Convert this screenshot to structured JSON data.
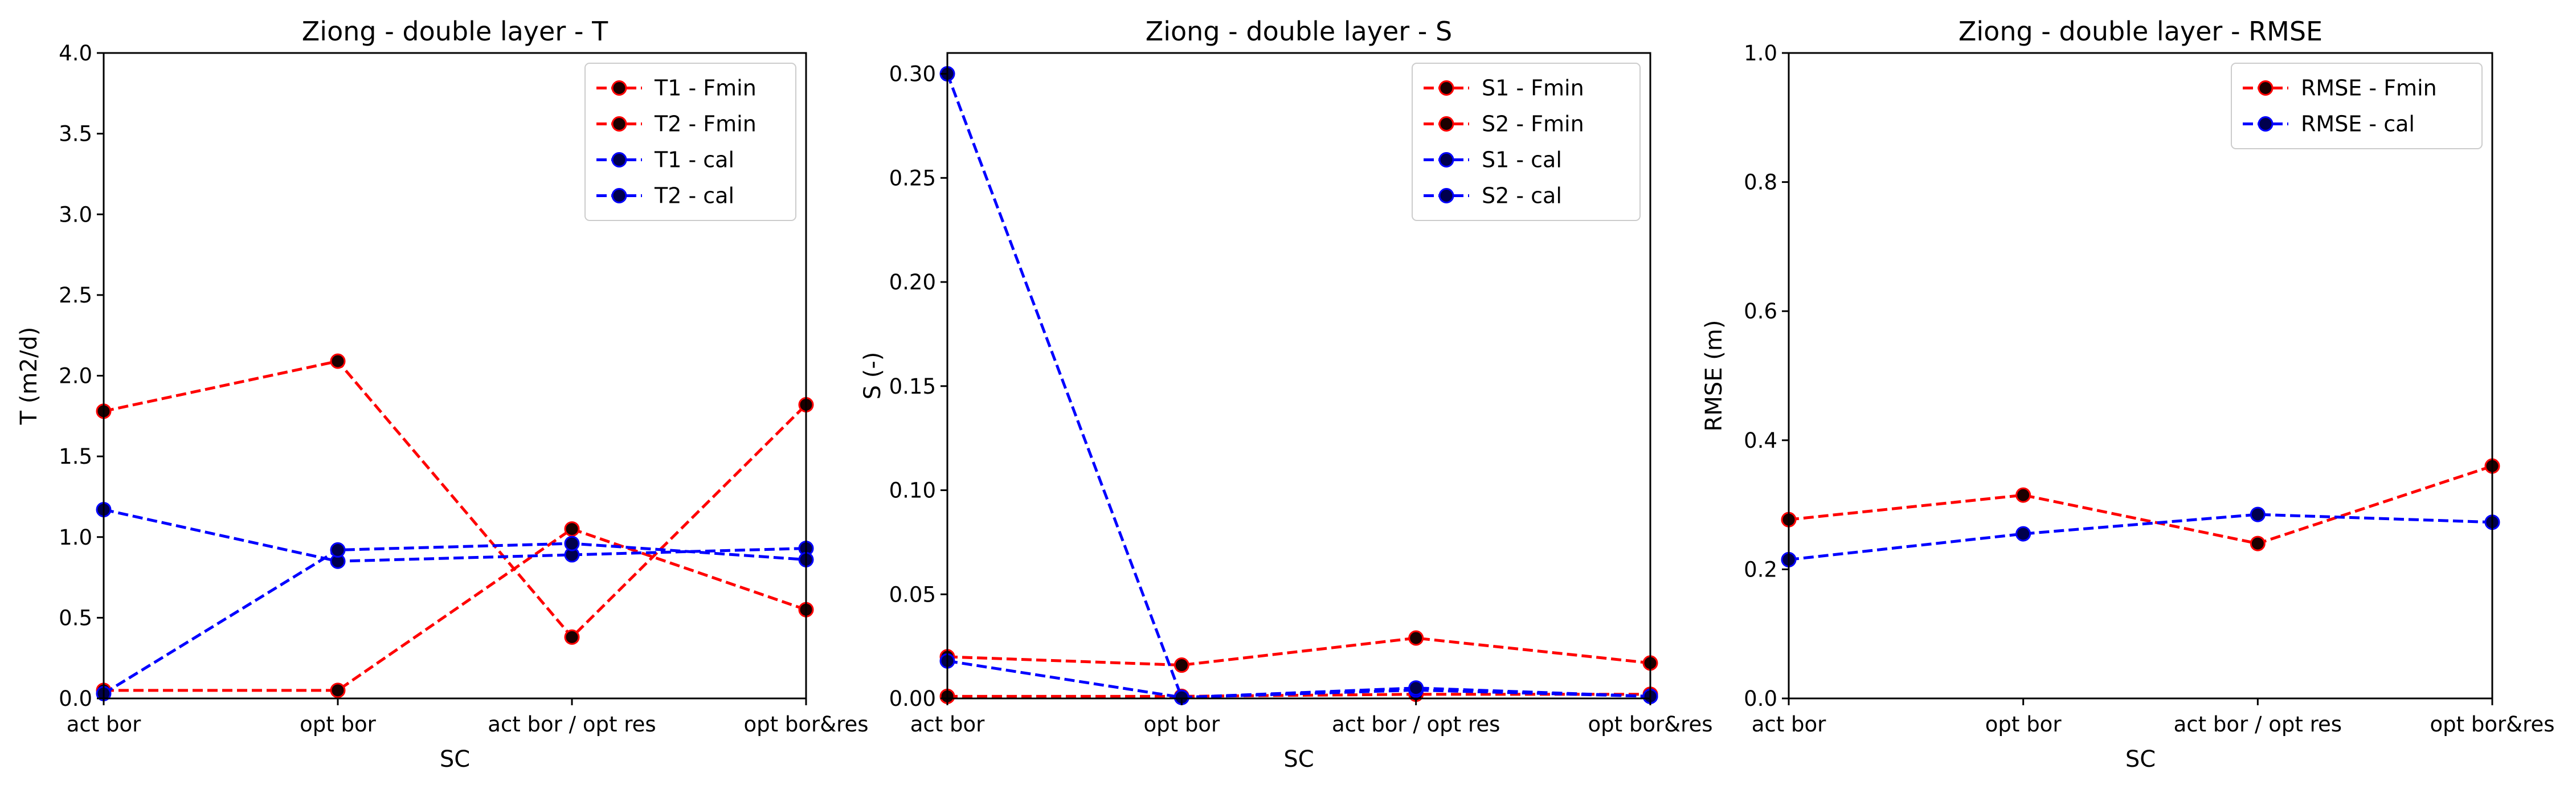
{
  "chart_data": [
    {
      "type": "line",
      "title": "Ziong - double layer - T",
      "xlabel": "SC",
      "ylabel": "T (m2/d)",
      "categories": [
        "act bor",
        "opt bor",
        "act bor / opt res",
        "opt bor&res"
      ],
      "ylim": [
        0,
        4.0
      ],
      "yticks": [
        "0.0",
        "0.5",
        "1.0",
        "1.5",
        "2.0",
        "2.5",
        "3.0",
        "3.5",
        "4.0"
      ],
      "yticks_values": [
        0,
        0.5,
        1.0,
        1.5,
        2.0,
        2.5,
        3.0,
        3.5,
        4.0
      ],
      "grid": false,
      "legend": "top-right",
      "series": [
        {
          "name": "T1 - Fmin",
          "values": [
            1.78,
            2.09,
            0.38,
            1.82
          ],
          "color": "#ff0000",
          "marker_fill": "#1a0000"
        },
        {
          "name": "T2 - Fmin",
          "values": [
            0.05,
            0.05,
            1.05,
            0.55
          ],
          "color": "#ff0000",
          "marker_fill": "#1a0000"
        },
        {
          "name": "T1 - cal",
          "values": [
            1.17,
            0.85,
            0.89,
            0.93
          ],
          "color": "#0000ff",
          "marker_fill": "#00004d"
        },
        {
          "name": "T2 - cal",
          "values": [
            0.03,
            0.92,
            0.96,
            0.86
          ],
          "color": "#0000ff",
          "marker_fill": "#00004d"
        }
      ]
    },
    {
      "type": "line",
      "title": "Ziong - double layer - S",
      "xlabel": "SC",
      "ylabel": "S (-)",
      "categories": [
        "act bor",
        "opt bor",
        "act bor / opt res",
        "opt bor&res"
      ],
      "ylim": [
        0,
        0.31
      ],
      "yticks": [
        "0.00",
        "0.05",
        "0.10",
        "0.15",
        "0.20",
        "0.25",
        "0.30"
      ],
      "yticks_values": [
        0,
        0.05,
        0.1,
        0.15,
        0.2,
        0.25,
        0.3
      ],
      "grid": false,
      "legend": "top-right",
      "series": [
        {
          "name": "S1 - Fmin",
          "values": [
            0.02,
            0.016,
            0.029,
            0.017
          ],
          "color": "#ff0000",
          "marker_fill": "#1a0000"
        },
        {
          "name": "S2 - Fmin",
          "values": [
            0.001,
            0.001,
            0.002,
            0.002
          ],
          "color": "#ff0000",
          "marker_fill": "#1a0000"
        },
        {
          "name": "S1 - cal",
          "values": [
            0.018,
            0.0005,
            0.004,
            0.001
          ],
          "color": "#0000ff",
          "marker_fill": "#00004d"
        },
        {
          "name": "S2 - cal",
          "values": [
            0.3,
            0.0005,
            0.005,
            0.001
          ],
          "color": "#0000ff",
          "marker_fill": "#00004d"
        }
      ]
    },
    {
      "type": "line",
      "title": "Ziong - double layer - RMSE",
      "xlabel": "SC",
      "ylabel": "RMSE (m)",
      "categories": [
        "act bor",
        "opt bor",
        "act bor / opt res",
        "opt bor&res"
      ],
      "ylim": [
        0,
        1.0
      ],
      "yticks": [
        "0.0",
        "0.2",
        "0.4",
        "0.6",
        "0.8",
        "1.0"
      ],
      "yticks_values": [
        0,
        0.2,
        0.4,
        0.6,
        0.8,
        1.0
      ],
      "grid": false,
      "legend": "top-right",
      "series": [
        {
          "name": "RMSE - Fmin",
          "values": [
            0.277,
            0.315,
            0.24,
            0.36
          ],
          "color": "#ff0000",
          "marker_fill": "#1a0000"
        },
        {
          "name": "RMSE - cal",
          "values": [
            0.215,
            0.255,
            0.285,
            0.273
          ],
          "color": "#0000ff",
          "marker_fill": "#00004d"
        }
      ]
    }
  ]
}
